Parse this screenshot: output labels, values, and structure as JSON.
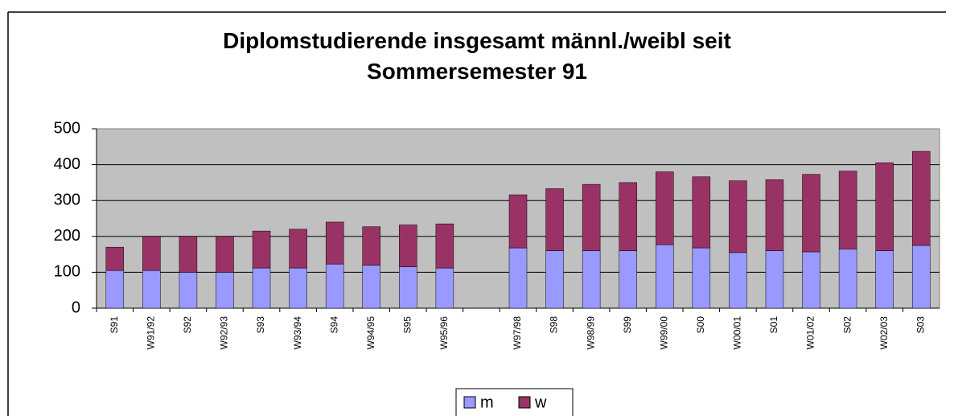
{
  "chart_data": {
    "type": "stacked_bar",
    "title": "Diplomstudierende insgesamt männl./weibl seit Sommersemester 91",
    "categories": [
      "S91",
      "W91/92",
      "S92",
      "W92/93",
      "S93",
      "W93/94",
      "S94",
      "W94/95",
      "S95",
      "W95/96",
      null,
      "W97/98",
      "S98",
      "W98/99",
      "S99",
      "W99/00",
      "S00",
      "W00/01",
      "S01",
      "W01/02",
      "S02",
      "W02/03",
      "S03"
    ],
    "series": [
      {
        "name": "m",
        "color": "#9999ff",
        "values": [
          105,
          105,
          100,
          100,
          112,
          112,
          123,
          120,
          115,
          112,
          null,
          168,
          160,
          160,
          160,
          177,
          168,
          155,
          160,
          157,
          165,
          160,
          175
        ]
      },
      {
        "name": "w",
        "color": "#993366",
        "values": [
          65,
          95,
          100,
          100,
          103,
          108,
          117,
          107,
          117,
          123,
          null,
          148,
          173,
          185,
          190,
          203,
          198,
          200,
          198,
          216,
          217,
          245,
          262
        ]
      }
    ],
    "ylim": [
      0,
      500
    ],
    "yticks": [
      0,
      100,
      200,
      300,
      400,
      500
    ],
    "grid": true,
    "legend": "bottom"
  }
}
